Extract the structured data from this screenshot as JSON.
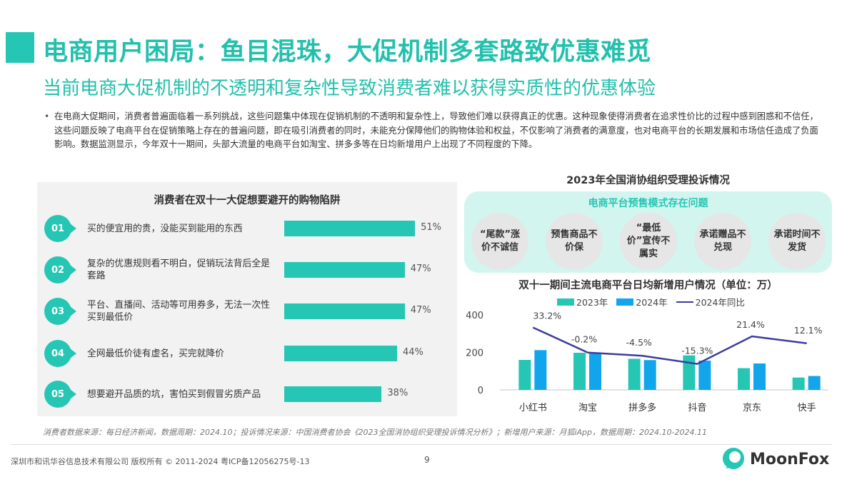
{
  "header": {
    "title": "电商用户困局：鱼目混珠，大促机制多套路致优惠难觅",
    "subtitle": "当前电商大促机制的不透明和复杂性导致消费者难以获得实质性的优惠体验"
  },
  "paragraph": "在电商大促期间，消费者普遍面临着一系列挑战，这些问题集中体现在促销机制的不透明和复杂性上，导致他们难以获得真正的优惠。这种现象使得消费者在追求性价比的过程中感到困惑和不信任，这些问题反映了电商平台在促销策略上存在的普遍问题，即在吸引消费者的同时，未能充分保障他们的购物体验和权益，不仅影响了消费者的满意度，也对电商平台的长期发展和市场信任造成了负面影响。数据监测显示，今年双十一期间，头部大流量的电商平台如淘宝、拼多多等在日均新增用户上出现了不同程度的下降。",
  "complaints": {
    "title": "2023年全国消协组织受理投诉情况",
    "box_title": "电商平台预售模式存在问题",
    "items": [
      "“尾款”涨价不诚信",
      "预售商品不价保",
      "“最低价”宣传不属实",
      "承诺赠品不兑现",
      "承诺时间不发货"
    ]
  },
  "chart_data": [
    {
      "type": "bar",
      "orientation": "horizontal",
      "title": "消费者在双十一大促想要避开的购物陷阱",
      "categories": [
        "买的便宜用的贵，没能买到能用的东西",
        "复杂的优惠规则看不明白，促销玩法背后全是套路",
        "平台、直播间、活动等可用券多，无法一次性买到最低价",
        "全网最低价徒有虚名，买完就降价",
        "想要避开品质的坑，害怕买到假冒劣质产品"
      ],
      "badges": [
        "01",
        "02",
        "03",
        "04",
        "05"
      ],
      "values": [
        51,
        47,
        47,
        44,
        38
      ],
      "labels": [
        "51%",
        "47%",
        "47%",
        "44%",
        "38%"
      ],
      "unit": "%",
      "color": "#26c6b4"
    },
    {
      "type": "bar+line",
      "title": "双十一期间主流电商平台日均新增用户情况（单位：万）",
      "categories": [
        "小红书",
        "淘宝",
        "拼多多",
        "抖音",
        "京东",
        "快手"
      ],
      "ylim": [
        0,
        400
      ],
      "yticks": [
        "0",
        "200",
        "400"
      ],
      "y2lim": [
        -50,
        50
      ],
      "y2_visible": false,
      "legend_position": "top",
      "series": [
        {
          "name": "2023年",
          "type": "bar",
          "color": "#26c6b4",
          "values": [
            160,
            198,
            166,
            184,
            116,
            66
          ]
        },
        {
          "name": "2024年",
          "type": "bar",
          "color": "#12a5ec",
          "values": [
            212,
            197,
            159,
            156,
            141,
            74
          ]
        },
        {
          "name": "2024年同比",
          "type": "line",
          "axis": "secondary",
          "color": "#3c3ca0",
          "values": [
            33.2,
            -0.2,
            -4.5,
            -15.3,
            21.4,
            12.1
          ],
          "labels": [
            "33.2%",
            "-0.2%",
            "-4.5%",
            "-15.3%",
            "21.4%",
            "12.1%"
          ]
        }
      ]
    }
  ],
  "source": "消费者数据来源：每日经济新闻，数据周期：2024.10；投诉情况来源：中国消费者协会《2023全国消协组织受理投诉情况分析》；新增用户来源：月狐iApp，数据周期：2024.10-2024.11",
  "footer": {
    "copyright": "深圳市和讯华谷信息技术有限公司 版权所有 © 2011-2024 粤ICP备12056275号-13",
    "page": "9",
    "logo": "MoonFox"
  }
}
